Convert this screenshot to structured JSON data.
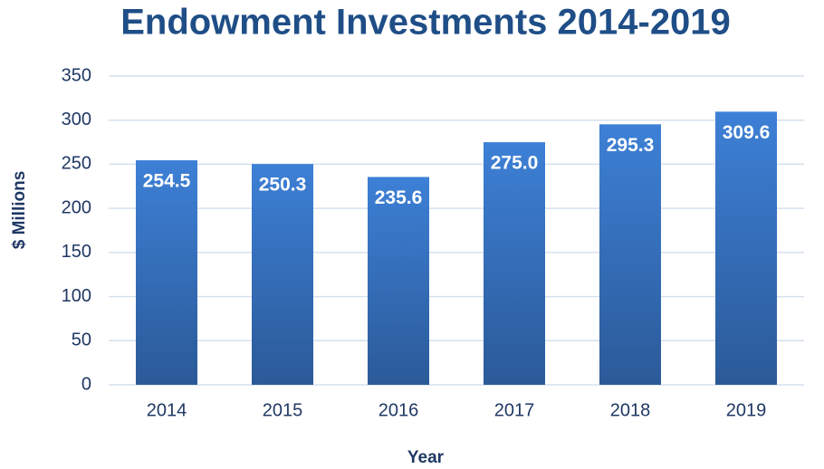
{
  "chart_data": {
    "type": "bar",
    "title": "Endowment Investments 2014-2019",
    "categories": [
      "2014",
      "2015",
      "2016",
      "2017",
      "2018",
      "2019"
    ],
    "values": [
      254.5,
      250.3,
      235.6,
      275,
      295.3,
      309.6
    ],
    "value_labels": [
      "254.5",
      "250.3",
      "235.6",
      "275.0",
      "295.3",
      "309.6"
    ],
    "color": "#3a78c9",
    "x_label": "Year",
    "y_label": "$ Millions",
    "ylim": [
      0,
      350
    ],
    "yticks": [
      0,
      50,
      100,
      150,
      200,
      250,
      300,
      350
    ],
    "grid": true
  }
}
